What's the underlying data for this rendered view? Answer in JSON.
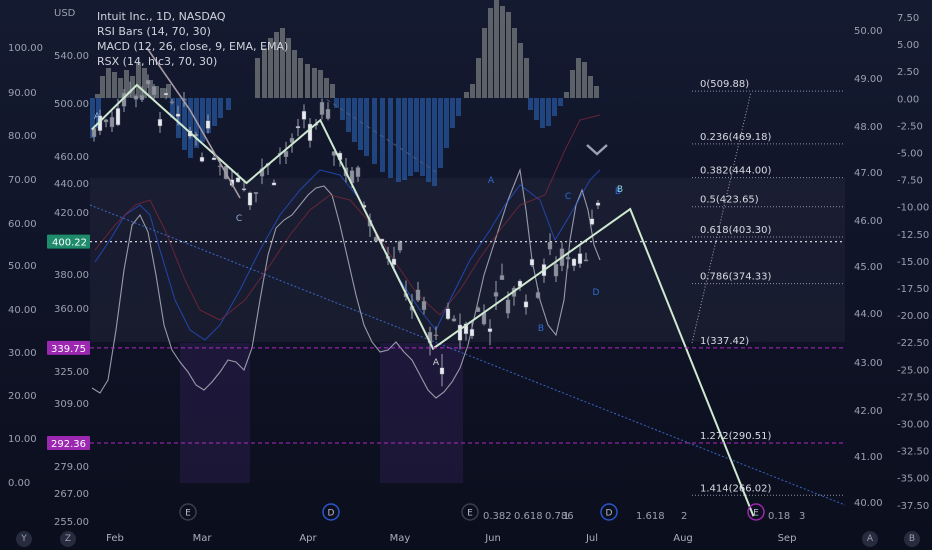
{
  "chart_data": {
    "type": "candlestick",
    "title": "Intuit Inc., 1D, NASDAQ",
    "currency_label": "USD",
    "indicators": [
      "RSI Bars (14, 70, 30)",
      "MACD (12, 26, close, 9, EMA, EMA)",
      "RSX (14, hlc3, 70, 30)"
    ],
    "x_labels": [
      "Feb",
      "Mar",
      "Apr",
      "May",
      "Jun",
      "Jul",
      "Aug",
      "Sep"
    ],
    "price_axis_ticks": [
      540,
      500,
      460,
      440,
      420,
      400,
      380,
      360,
      340,
      325,
      309,
      294,
      279,
      267,
      255
    ],
    "price_axis_labels": [
      "540.00",
      "500.00",
      "460.00",
      "440.00",
      "420.00",
      "380.00",
      "360.00",
      "325.00",
      "309.00",
      "279.00",
      "267.00",
      "255.00"
    ],
    "left_axis_labels": [
      "100.00",
      "90.00",
      "80.00",
      "70.00",
      "60.00",
      "50.00",
      "40.00",
      "30.00",
      "20.00",
      "10.00",
      "0.00"
    ],
    "right_axis_1_labels": [
      "50.00",
      "49.00",
      "48.00",
      "47.00",
      "46.00",
      "45.00",
      "44.00",
      "43.00",
      "42.00",
      "41.00",
      "40.00"
    ],
    "right_axis_2_labels": [
      "7.50",
      "5.00",
      "2.50",
      "0.00",
      "-2.50",
      "-5.00",
      "-7.50",
      "-10.00",
      "-12.50",
      "-15.00",
      "-17.50",
      "-20.00",
      "-22.50",
      "-25.00",
      "-27.50",
      "-30.00",
      "-32.50",
      "-35.00",
      "-37.50"
    ],
    "current_price": "400.22",
    "price_markers": [
      {
        "label": "339.75",
        "color": "#9c27b0"
      },
      {
        "label": "292.36",
        "color": "#9c27b0"
      }
    ],
    "fibonacci_levels": [
      {
        "ratio": "0",
        "price": 509.88,
        "label": "0(509.88)"
      },
      {
        "ratio": "0.236",
        "price": 469.18,
        "label": "0.236(469.18)"
      },
      {
        "ratio": "0.382",
        "price": 444.0,
        "label": "0.382(444.00)"
      },
      {
        "ratio": "0.5",
        "price": 423.65,
        "label": "0.5(423.65)"
      },
      {
        "ratio": "0.618",
        "price": 403.3,
        "label": "0.618(403.30)"
      },
      {
        "ratio": "0.786",
        "price": 374.33,
        "label": "0.786(374.33)"
      },
      {
        "ratio": "1",
        "price": 337.42,
        "label": "1(337.42)"
      },
      {
        "ratio": "1.272",
        "price": 290.51,
        "label": "1.272(290.51)"
      },
      {
        "ratio": "1.414",
        "price": 266.02,
        "label": "1.414(266.02)"
      }
    ],
    "wave_labels": [
      "A",
      "C",
      "A",
      "A",
      "B",
      "C",
      "B",
      "D",
      "B"
    ],
    "event_markers": [
      "E",
      "D",
      "E",
      "D",
      "E"
    ],
    "bottom_text": [
      "0.382",
      "0.618",
      "0.786",
      "1",
      "1.618",
      "2",
      "0.18",
      "3"
    ],
    "projection_path": [
      {
        "date": "Jan 24",
        "price": 480
      },
      {
        "date": "Feb 8",
        "price": 515
      },
      {
        "date": "Mar 14",
        "price": 440
      },
      {
        "date": "Apr 5",
        "price": 487
      },
      {
        "date": "May 12",
        "price": 337
      },
      {
        "date": "Jul 14",
        "price": 422
      },
      {
        "date": "Aug 22",
        "price": 257
      }
    ],
    "ohlc_summary": {
      "high_approx": 515,
      "low_approx": 337,
      "last_close": 400.22
    },
    "grid": false
  },
  "corner_buttons": {
    "left": "Y",
    "left2": "Z",
    "right": "A",
    "right2": "B"
  }
}
